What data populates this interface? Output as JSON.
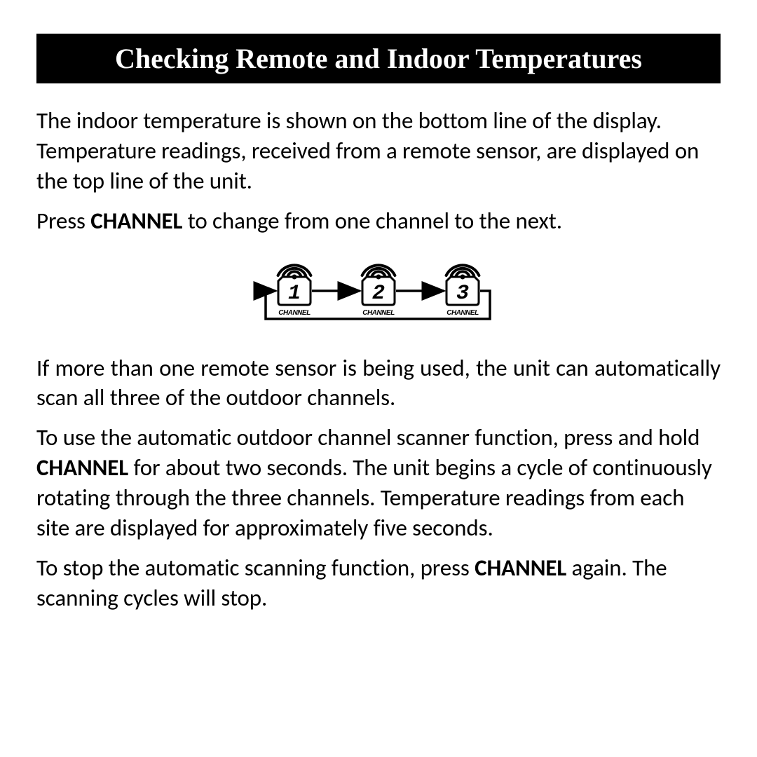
{
  "title": "Checking Remote and Indoor Temperatures",
  "para1": "The indoor temperature is shown on the bottom line of the display. Temperature readings, received from a remote sensor, are displayed on the top line of the unit.",
  "para2_pre": "Press ",
  "para2_bold": "CHANNEL",
  "para2_post": " to change from one channel to the next.",
  "diagram": {
    "channels": [
      "1",
      "2",
      "3"
    ],
    "label": "CHANNEL",
    "digit_font_family": "'DS-Digital','Courier New',monospace",
    "label_font_family": "Arial, sans-serif",
    "stroke_color": "#000000",
    "background": "#ffffff"
  },
  "para3": "If more than one remote sensor is being used, the unit can automatically scan all three of the outdoor channels.",
  "para4_a": "To use the automatic outdoor channel scanner function, press and hold ",
  "para4_bold": "CHANNEL",
  "para4_b": " for about two seconds. The unit begins a cycle of continuously rotating through the three channels. Temperature readings from each site are displayed for approximately five seconds.",
  "para5_a": "To stop the automatic scanning function, press ",
  "para5_bold": "CHANNEL",
  "para5_b": " again. The scanning cycles will stop."
}
